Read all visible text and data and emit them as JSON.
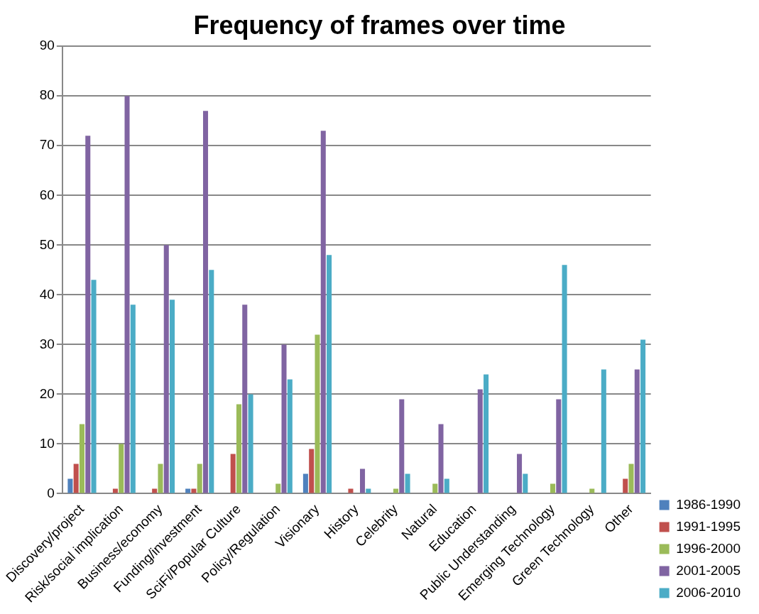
{
  "chart_data": {
    "type": "bar",
    "title": "Frequency of frames over time",
    "categories": [
      "Discovery/project",
      "Risk/social implication",
      "Business/economy",
      "Funding/investment",
      "SciFi/Popular Culture",
      "Policy/Regulation",
      "Visionary",
      "History",
      "Celebrity",
      "Natural",
      "Education",
      "Public Understanding",
      "Emerging Technology",
      "Green Technology",
      "Other"
    ],
    "series": [
      {
        "name": "1986-1990",
        "color": "#4f81bd",
        "values": [
          3,
          0,
          0,
          1,
          0,
          0,
          4,
          0,
          0,
          0,
          0,
          0,
          0,
          0,
          0
        ]
      },
      {
        "name": "1991-1995",
        "color": "#c0504d",
        "values": [
          6,
          1,
          1,
          1,
          8,
          0,
          9,
          1,
          0,
          0,
          0,
          0,
          0,
          0,
          3
        ]
      },
      {
        "name": "1996-2000",
        "color": "#9bbb59",
        "values": [
          14,
          10,
          6,
          6,
          18,
          2,
          32,
          0,
          1,
          2,
          0,
          0,
          2,
          1,
          6
        ]
      },
      {
        "name": "2001-2005",
        "color": "#8064a2",
        "values": [
          72,
          80,
          50,
          77,
          38,
          30,
          73,
          5,
          19,
          14,
          21,
          8,
          19,
          0,
          25
        ]
      },
      {
        "name": "2006-2010",
        "color": "#4bacc6",
        "values": [
          43,
          38,
          39,
          45,
          20,
          23,
          48,
          1,
          4,
          3,
          24,
          4,
          46,
          25,
          31
        ]
      }
    ],
    "ylim": [
      0,
      90
    ],
    "yticks": [
      0,
      10,
      20,
      30,
      40,
      50,
      60,
      70,
      80,
      90
    ],
    "grid": "y",
    "legend": "bottom right"
  }
}
